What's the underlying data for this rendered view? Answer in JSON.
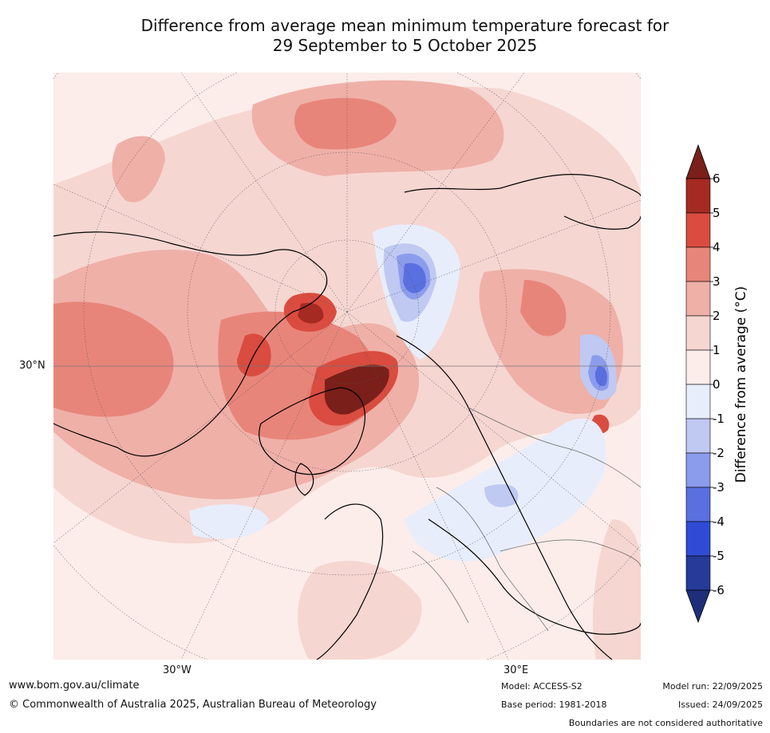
{
  "title": {
    "line1": "Difference from average mean minimum temperature forecast for",
    "line2": "29 September to 5 October 2025"
  },
  "map_labels": {
    "lat_30n": "30°N",
    "lon_30w": "30°W",
    "lon_30e": "30°E"
  },
  "colorbar": {
    "label": "Difference from average (°C)",
    "ticks": [
      "6",
      "5",
      "4",
      "3",
      "2",
      "1",
      "0",
      "-1",
      "-2",
      "-3",
      "-4",
      "-5",
      "-6"
    ],
    "colors": [
      "#a52a22",
      "#d94c3f",
      "#e8857a",
      "#efb0a8",
      "#f6d6d1",
      "#fcedea",
      "#e8edfb",
      "#bfc9f2",
      "#8c9cec",
      "#5a6fe0",
      "#2f4bd6",
      "#253a99"
    ],
    "over_color": "#7a1f1a",
    "under_color": "#1f2e7a"
  },
  "footer": {
    "website": "www.bom.gov.au/climate",
    "copyright": "© Commonwealth of Australia 2025, Australian Bureau of Meteorology",
    "model": "Model: ACCESS-S2",
    "base_period": "Base period: 1981-2018",
    "model_run": "Model run: 22/09/2025",
    "issued": "Issued: 24/09/2025",
    "disclaimer": "Boundaries are not considered authoritative"
  }
}
